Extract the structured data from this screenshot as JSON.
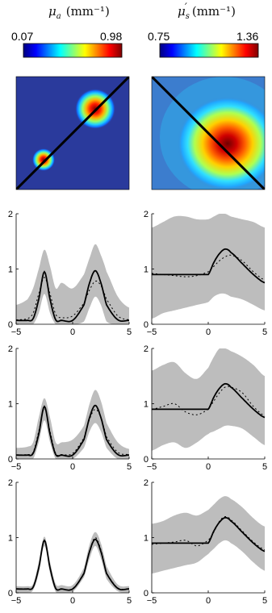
{
  "headers": {
    "left": {
      "symbol": "μ",
      "sub": "a",
      "unit": "(mm⁻¹)"
    },
    "right": {
      "symbol": "μ",
      "sub": "s",
      "prime": "′",
      "unit": "(mm⁻¹)"
    }
  },
  "colorbars": {
    "left": {
      "min": "0.07",
      "max": "0.98"
    },
    "right": {
      "min": "0.75",
      "max": "1.36"
    }
  },
  "colormap": "jet",
  "chart_data": [
    {
      "type": "line",
      "panel": "row1-left",
      "xlim": [
        -5,
        5
      ],
      "ylim": [
        0,
        2
      ],
      "xticks": [
        "−5",
        "0",
        "5"
      ],
      "yticks": [
        "0",
        "1",
        "2"
      ],
      "x": [
        -5,
        -4,
        -3.5,
        -3,
        -2.5,
        -2,
        -1.5,
        -1,
        0,
        1,
        1.5,
        2,
        2.5,
        3,
        4,
        5
      ],
      "series": [
        {
          "role": "true",
          "values": [
            0.07,
            0.07,
            0.1,
            0.45,
            0.95,
            0.45,
            0.08,
            0.07,
            0.07,
            0.35,
            0.75,
            0.97,
            0.75,
            0.35,
            0.08,
            0.07
          ]
        },
        {
          "role": "estimate",
          "values": [
            0.08,
            0.1,
            0.2,
            0.55,
            0.85,
            0.55,
            0.18,
            0.12,
            0.15,
            0.38,
            0.62,
            0.78,
            0.7,
            0.45,
            0.15,
            0.08
          ]
        }
      ],
      "band": {
        "lower": [
          0.0,
          0.0,
          0.0,
          0.2,
          0.55,
          0.2,
          0.0,
          0.0,
          0.0,
          0.05,
          0.3,
          0.5,
          0.35,
          0.05,
          0.0,
          0.0
        ],
        "upper": [
          0.35,
          0.45,
          0.65,
          1.0,
          1.35,
          1.05,
          0.65,
          0.75,
          0.65,
          0.9,
          1.2,
          1.45,
          1.25,
          0.95,
          0.5,
          0.3
        ]
      }
    },
    {
      "type": "line",
      "panel": "row1-right",
      "xlim": [
        -5,
        5
      ],
      "ylim": [
        0,
        2
      ],
      "xticks": [
        "−5",
        "0",
        "5"
      ],
      "yticks": [
        "0",
        "1",
        "2"
      ],
      "x": [
        -5,
        -4,
        -3,
        -2,
        -1,
        0,
        0.5,
        1,
        1.5,
        2,
        3,
        4,
        5
      ],
      "series": [
        {
          "role": "true",
          "values": [
            0.9,
            0.9,
            0.9,
            0.9,
            0.9,
            0.9,
            1.12,
            1.28,
            1.36,
            1.3,
            1.1,
            0.9,
            0.75
          ]
        },
        {
          "role": "estimate",
          "values": [
            0.92,
            0.9,
            0.88,
            0.86,
            0.88,
            0.95,
            1.05,
            1.15,
            1.22,
            1.25,
            1.15,
            0.95,
            0.8
          ]
        }
      ],
      "band": {
        "lower": [
          0.1,
          0.2,
          0.25,
          0.3,
          0.35,
          0.4,
          0.5,
          0.55,
          0.55,
          0.5,
          0.45,
          0.35,
          0.25
        ],
        "upper": [
          1.75,
          1.85,
          1.95,
          1.95,
          1.9,
          1.9,
          1.95,
          2.0,
          2.0,
          1.95,
          1.9,
          1.85,
          1.75
        ]
      }
    },
    {
      "type": "line",
      "panel": "row2-left",
      "xlim": [
        -5,
        5
      ],
      "ylim": [
        0,
        2
      ],
      "xticks": [
        "−5",
        "0",
        "5"
      ],
      "yticks": [
        "0",
        "1",
        "2"
      ],
      "x": [
        -5,
        -4,
        -3.5,
        -3,
        -2.5,
        -2,
        -1.5,
        -1,
        0,
        1,
        1.5,
        2,
        2.5,
        3,
        4,
        5
      ],
      "series": [
        {
          "role": "true",
          "values": [
            0.07,
            0.07,
            0.1,
            0.45,
            0.95,
            0.45,
            0.08,
            0.07,
            0.07,
            0.35,
            0.75,
            0.97,
            0.75,
            0.35,
            0.08,
            0.07
          ]
        },
        {
          "role": "estimate",
          "values": [
            0.07,
            0.08,
            0.12,
            0.5,
            0.92,
            0.5,
            0.1,
            0.08,
            0.1,
            0.38,
            0.72,
            0.9,
            0.75,
            0.4,
            0.12,
            0.08
          ]
        }
      ],
      "band": {
        "lower": [
          0.0,
          0.0,
          0.0,
          0.3,
          0.7,
          0.3,
          0.0,
          0.0,
          0.0,
          0.2,
          0.5,
          0.65,
          0.5,
          0.2,
          0.0,
          0.0
        ],
        "upper": [
          0.2,
          0.22,
          0.3,
          0.75,
          1.1,
          0.75,
          0.3,
          0.3,
          0.35,
          0.6,
          1.0,
          1.25,
          1.05,
          0.65,
          0.3,
          0.18
        ]
      }
    },
    {
      "type": "line",
      "panel": "row2-right",
      "xlim": [
        -5,
        5
      ],
      "ylim": [
        0,
        2
      ],
      "xticks": [
        "−5",
        "0",
        "5"
      ],
      "yticks": [
        "0",
        "1",
        "2"
      ],
      "x": [
        -5,
        -4,
        -3,
        -2,
        -1,
        0,
        0.5,
        1,
        1.5,
        2,
        3,
        4,
        5
      ],
      "series": [
        {
          "role": "true",
          "values": [
            0.9,
            0.9,
            0.9,
            0.9,
            0.9,
            0.9,
            1.12,
            1.28,
            1.36,
            1.3,
            1.1,
            0.9,
            0.75
          ]
        },
        {
          "role": "estimate",
          "values": [
            0.9,
            0.95,
            1.0,
            0.85,
            0.8,
            0.9,
            1.05,
            1.2,
            1.3,
            1.3,
            1.2,
            0.95,
            0.78
          ]
        }
      ],
      "band": {
        "lower": [
          0.15,
          0.25,
          0.3,
          0.2,
          0.3,
          0.45,
          0.5,
          0.55,
          0.6,
          0.6,
          0.55,
          0.4,
          0.25
        ],
        "upper": [
          1.6,
          1.7,
          1.75,
          1.55,
          1.45,
          1.65,
          1.85,
          2.0,
          2.0,
          1.95,
          1.85,
          1.7,
          1.5
        ]
      }
    },
    {
      "type": "line",
      "panel": "row3-left",
      "xlim": [
        -5,
        5
      ],
      "ylim": [
        0,
        2
      ],
      "xticks": [
        "−5",
        "0",
        "5"
      ],
      "yticks": [
        "0",
        "1",
        "2"
      ],
      "x": [
        -5,
        -4,
        -3.5,
        -3,
        -2.5,
        -2,
        -1.5,
        -1,
        0,
        1,
        1.5,
        2,
        2.5,
        3,
        4,
        5
      ],
      "series": [
        {
          "role": "true",
          "values": [
            0.07,
            0.07,
            0.1,
            0.45,
            0.95,
            0.45,
            0.08,
            0.07,
            0.07,
            0.35,
            0.75,
            0.97,
            0.75,
            0.35,
            0.08,
            0.07
          ]
        },
        {
          "role": "estimate",
          "values": [
            0.07,
            0.07,
            0.1,
            0.46,
            0.94,
            0.46,
            0.09,
            0.07,
            0.08,
            0.36,
            0.76,
            1.0,
            0.78,
            0.36,
            0.09,
            0.07
          ]
        }
      ],
      "band": {
        "lower": [
          0.0,
          0.0,
          0.05,
          0.35,
          0.85,
          0.35,
          0.02,
          0.0,
          0.02,
          0.28,
          0.62,
          0.85,
          0.62,
          0.25,
          0.03,
          0.0
        ],
        "upper": [
          0.12,
          0.12,
          0.16,
          0.56,
          1.02,
          0.56,
          0.16,
          0.14,
          0.14,
          0.45,
          0.88,
          1.1,
          0.9,
          0.48,
          0.15,
          0.12
        ]
      }
    },
    {
      "type": "line",
      "panel": "row3-right",
      "xlim": [
        -5,
        5
      ],
      "ylim": [
        0,
        2
      ],
      "xticks": [
        "−5",
        "0",
        "5"
      ],
      "yticks": [
        "0",
        "1",
        "2"
      ],
      "x": [
        -5,
        -4,
        -3,
        -2,
        -1,
        0,
        0.5,
        1,
        1.5,
        2,
        3,
        4,
        5
      ],
      "series": [
        {
          "role": "true",
          "values": [
            0.9,
            0.9,
            0.9,
            0.9,
            0.9,
            0.9,
            1.12,
            1.28,
            1.36,
            1.3,
            1.1,
            0.9,
            0.75
          ]
        },
        {
          "role": "estimate",
          "values": [
            0.88,
            0.9,
            0.92,
            0.95,
            0.85,
            0.95,
            1.1,
            1.3,
            1.38,
            1.32,
            1.12,
            0.92,
            0.78
          ]
        }
      ],
      "band": {
        "lower": [
          0.35,
          0.4,
          0.45,
          0.5,
          0.55,
          0.7,
          0.8,
          0.9,
          0.95,
          0.9,
          0.75,
          0.55,
          0.4
        ],
        "upper": [
          1.25,
          1.3,
          1.4,
          1.45,
          1.4,
          1.5,
          1.6,
          1.7,
          1.75,
          1.7,
          1.55,
          1.35,
          1.2
        ]
      }
    }
  ]
}
